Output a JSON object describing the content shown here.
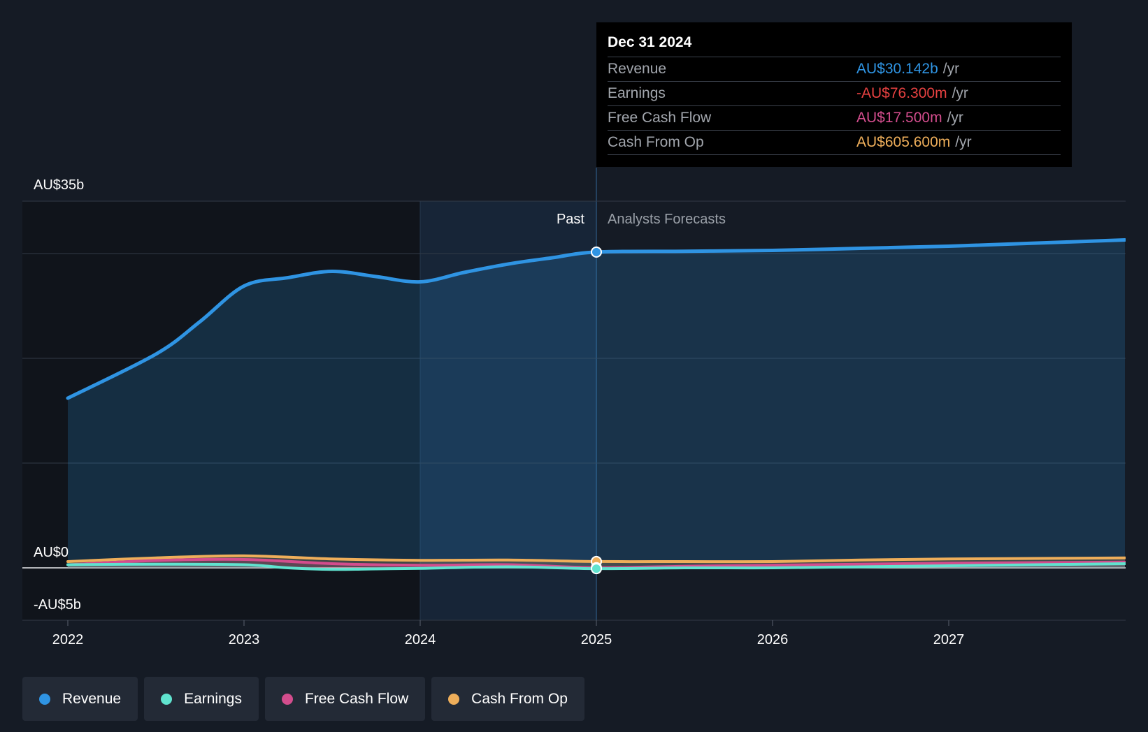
{
  "chart_data": {
    "type": "area",
    "x_axis": {
      "ticks": [
        "2022",
        "2023",
        "2024",
        "2025",
        "2026",
        "2027"
      ]
    },
    "y_axis": {
      "labels": [
        "AU$35b",
        "AU$0",
        "-AU$5b"
      ],
      "ylim": [
        -5,
        35
      ],
      "unit": "AU$ billions"
    },
    "regions": {
      "past_label": "Past",
      "forecast_label": "Analysts Forecasts"
    },
    "series": [
      {
        "name": "Revenue",
        "color": "#2f94e3",
        "x": [
          2022.0,
          2022.5,
          2022.75,
          2023.0,
          2023.25,
          2023.5,
          2023.75,
          2024.0,
          2024.25,
          2024.5,
          2024.75,
          2025.0,
          2025.5,
          2026.0,
          2026.5,
          2027.0,
          2027.5,
          2028.0
        ],
        "y": [
          16.2,
          20.4,
          23.5,
          26.9,
          27.7,
          28.3,
          27.8,
          27.3,
          28.2,
          29.0,
          29.6,
          30.142,
          30.22,
          30.3,
          30.5,
          30.7,
          31.0,
          31.3
        ]
      },
      {
        "name": "Earnings",
        "color": "#60e3cf",
        "x": [
          2022.0,
          2022.5,
          2023.0,
          2023.25,
          2023.5,
          2023.75,
          2024.0,
          2024.5,
          2025.0,
          2025.5,
          2026.0,
          2026.5,
          2027.0,
          2027.5,
          2028.0
        ],
        "y": [
          0.3,
          0.35,
          0.3,
          0.0,
          -0.15,
          -0.1,
          -0.05,
          0.1,
          -0.0763,
          0.0,
          0.0,
          0.1,
          0.2,
          0.3,
          0.4
        ]
      },
      {
        "name": "Free Cash Flow",
        "color": "#d34d8d",
        "x": [
          2022.0,
          2022.5,
          2023.0,
          2023.5,
          2024.0,
          2024.5,
          2025.0,
          2025.5,
          2026.0,
          2026.5,
          2027.0,
          2027.5,
          2028.0
        ],
        "y": [
          0.3,
          0.7,
          0.8,
          0.4,
          0.25,
          0.3,
          0.0175,
          0.15,
          0.25,
          0.35,
          0.45,
          0.5,
          0.55
        ]
      },
      {
        "name": "Cash From Op",
        "color": "#eeae5a",
        "x": [
          2022.0,
          2022.5,
          2023.0,
          2023.5,
          2024.0,
          2024.5,
          2025.0,
          2025.5,
          2026.0,
          2026.5,
          2027.0,
          2027.5,
          2028.0
        ],
        "y": [
          0.6,
          0.95,
          1.15,
          0.85,
          0.72,
          0.75,
          0.6056,
          0.6,
          0.6,
          0.75,
          0.85,
          0.9,
          0.95
        ]
      }
    ],
    "tooltip": {
      "date": "Dec 31 2024",
      "rows": [
        {
          "label": "Revenue",
          "value": "AU$30.142b",
          "unit": "/yr",
          "color": "#2f94e3"
        },
        {
          "label": "Earnings",
          "value": "-AU$76.300m",
          "unit": "/yr",
          "color": "#e64141"
        },
        {
          "label": "Free Cash Flow",
          "value": "AU$17.500m",
          "unit": "/yr",
          "color": "#d34d8d"
        },
        {
          "label": "Cash From Op",
          "value": "AU$605.600m",
          "unit": "/yr",
          "color": "#eeae5a"
        }
      ]
    },
    "legend": [
      {
        "label": "Revenue",
        "color": "#2f94e3"
      },
      {
        "label": "Earnings",
        "color": "#60e3cf"
      },
      {
        "label": "Free Cash Flow",
        "color": "#d34d8d"
      },
      {
        "label": "Cash From Op",
        "color": "#eeae5a"
      }
    ],
    "grid": true
  }
}
